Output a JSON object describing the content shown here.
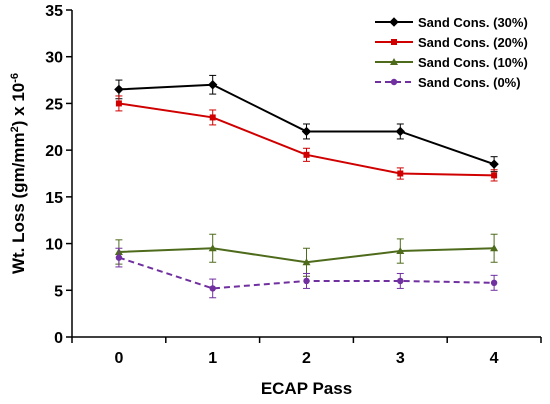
{
  "chart_data": {
    "type": "line",
    "categories": [
      "0",
      "1",
      "2",
      "3",
      "4"
    ],
    "xlabel": "ECAP Pass",
    "ylabel_main": "Wt. Loss (gm/mm",
    "ylabel_sup1": "2",
    "ylabel_mid": ") x 10",
    "ylabel_sup2": "-6",
    "ylim": [
      0,
      35
    ],
    "yticks": [
      "0",
      "5",
      "10",
      "15",
      "20",
      "25",
      "30",
      "35"
    ],
    "grid": false,
    "legend_position": "top-right",
    "series": [
      {
        "name": "Sand Cons. (30%)",
        "color": "#000000",
        "marker": "diamond",
        "dashed": false,
        "values": [
          26.5,
          27.0,
          22.0,
          22.0,
          18.5
        ],
        "errors": [
          1.0,
          1.0,
          0.8,
          0.8,
          0.8
        ]
      },
      {
        "name": "Sand Cons. (20%)",
        "color": "#d00000",
        "marker": "square",
        "dashed": false,
        "values": [
          25.0,
          23.5,
          19.5,
          17.5,
          17.3
        ],
        "errors": [
          0.8,
          0.8,
          0.7,
          0.6,
          0.6
        ]
      },
      {
        "name": "Sand Cons. (10%)",
        "color": "#4e6b1c",
        "marker": "triangle",
        "dashed": false,
        "values": [
          9.1,
          9.5,
          8.0,
          9.2,
          9.5
        ],
        "errors": [
          1.3,
          1.5,
          1.5,
          1.3,
          1.5
        ]
      },
      {
        "name": "Sand Cons. (0%)",
        "color": "#7030a0",
        "marker": "circle",
        "dashed": true,
        "values": [
          8.5,
          5.2,
          6.0,
          6.0,
          5.8
        ],
        "errors": [
          1.0,
          1.0,
          0.8,
          0.8,
          0.8
        ]
      }
    ]
  }
}
